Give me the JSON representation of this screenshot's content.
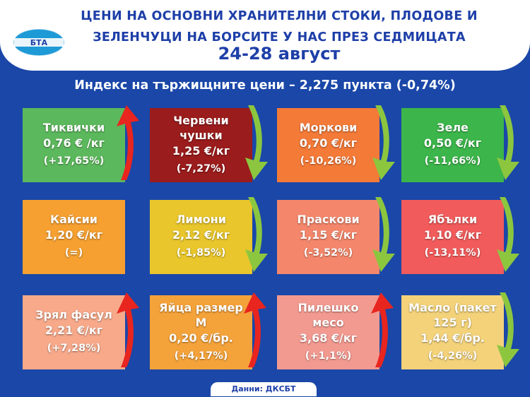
{
  "header": {
    "title_line1": "ЦЕНИ НА ОСНОВНИ ХРАНИТЕЛНИ СТОКИ, ПЛОДОВЕ И",
    "title_line2": "ЗЕЛЕНЧУЦИ НА БОРСИТЕ У НАС ПРЕЗ СЕДМИЦАТА",
    "period": "24-28 август",
    "logo_text": "БТА"
  },
  "index_text": "Индекс на тържищните цени – 2,275 пункта (-0,74%)",
  "products": [
    {
      "name": "Тиквички",
      "price": "0,76 € /кг",
      "change": "(+17,65%)",
      "trend": "up",
      "color": "#5cb85c"
    },
    {
      "name": "Червени чушки",
      "price": "1,25 €/кг",
      "change": "(-7,27%)",
      "trend": "down",
      "color": "#9b1c1c"
    },
    {
      "name": "Моркови",
      "price": "0,70 €/кг",
      "change": "(-10,26%)",
      "trend": "down",
      "color": "#f47a38"
    },
    {
      "name": "Зеле",
      "price": "0,50 €/кг",
      "change": "(-11,66%)",
      "trend": "down",
      "color": "#3cb64a"
    },
    {
      "name": "Кайсии",
      "price": "1,20 €/кг",
      "change": "(=)",
      "trend": "none",
      "color": "#f5a030"
    },
    {
      "name": "Лимони",
      "price": "2,12 €/кг",
      "change": "(-1,85%)",
      "trend": "down",
      "color": "#e8c62c"
    },
    {
      "name": "Праскови",
      "price": "1,15 €/кг",
      "change": "(-3,52%)",
      "trend": "down",
      "color": "#f4876b"
    },
    {
      "name": "Ябълки",
      "price": "1,10 €/кг",
      "change": "(-13,11%)",
      "trend": "down",
      "color": "#f25b5b"
    },
    {
      "name": "Зрял фасул",
      "price": "2,21 €/кг",
      "change": "(+7,28%)",
      "trend": "up",
      "color": "#f7a98a"
    },
    {
      "name": "Яйца размер М",
      "price": "0,20 €/бр.",
      "change": "(+4,17%)",
      "trend": "up",
      "color": "#f4a23a"
    },
    {
      "name": "Пилешко месо",
      "price": "3,68 €/кг",
      "change": "(+1,1%)",
      "trend": "up",
      "color": "#f39a90"
    },
    {
      "name": "Масло (пакет 125 г)",
      "price": "1,44 €/бр.",
      "change": "(-4,26%)",
      "trend": "down",
      "color": "#f3d27a"
    }
  ],
  "source": "Данни: ДКСБТ",
  "colors": {
    "background": "#1a47a8",
    "up_arrow": "#e8251f",
    "down_arrow": "#8cc63f",
    "title": "#1e3fa8"
  }
}
